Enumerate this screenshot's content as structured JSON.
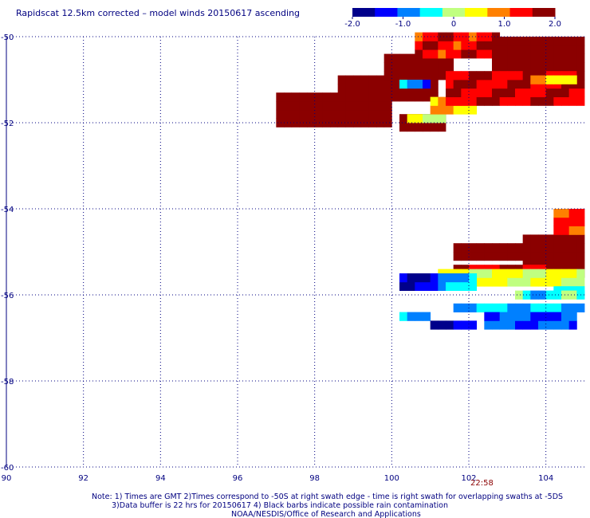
{
  "chart_data": {
    "type": "heatmap",
    "title": "Rapidscat 12.5km corrected – model winds 20150617 ascending",
    "xlim": [
      90,
      105
    ],
    "ylim": [
      -60,
      -50
    ],
    "x_ticks": [
      90,
      92,
      94,
      96,
      98,
      100,
      102,
      104
    ],
    "x_tick_labels": [
      "90",
      "92",
      "94",
      "96",
      "98",
      "100",
      "102",
      "104"
    ],
    "y_ticks": [
      -50,
      -52,
      -54,
      -56,
      -58,
      -60
    ],
    "y_tick_labels": [
      "-50",
      "-52",
      "-54",
      "-56",
      "-58",
      "-60"
    ],
    "grid": true,
    "colorbar": {
      "min": -2.0,
      "max": 2.0,
      "tick_values": [
        -2.0,
        -1.0,
        0,
        1.0,
        2.0
      ],
      "tick_labels": [
        "-2.0",
        "-1.0",
        "0",
        "1.0",
        "2.0"
      ],
      "colors": [
        "#00008b",
        "#0000ff",
        "#0080ff",
        "#00ffff",
        "#c0ff80",
        "#ffff00",
        "#ff8000",
        "#ff0000",
        "#8b0000"
      ]
    },
    "swath_time": "22:58",
    "notes": [
      "Note: 1) Times are GMT 2)Times correspond to -50S at right swath edge - time is right swath for overlapping swaths at -5DS",
      "3)Data buffer is 22 hrs for 20150617 4) Black barbs indicate possible rain contamination",
      "NOAA/NESDIS/Office of Research and Applications"
    ],
    "cell_size_deg": [
      0.2,
      0.2
    ],
    "regions": [
      {
        "x0": 97.0,
        "x1": 100.0,
        "y0": -52.1,
        "y1": -51.3,
        "value": 2.0
      },
      {
        "x0": 98.6,
        "x1": 101.2,
        "y0": -51.5,
        "y1": -50.9,
        "value": 2.0
      },
      {
        "x0": 99.8,
        "x1": 101.5,
        "y0": -51.0,
        "y1": -50.4,
        "value": 2.0
      },
      {
        "x0": 100.6,
        "x1": 102.8,
        "y0": -50.5,
        "y1": -50.0,
        "value": 1.4
      },
      {
        "x0": 102.6,
        "x1": 105.0,
        "y0": -50.8,
        "y1": -50.1,
        "value": 2.0
      },
      {
        "x0": 100.2,
        "x1": 101.4,
        "y0": -52.2,
        "y1": -51.8,
        "value": 2.0
      },
      {
        "x0": 100.4,
        "x1": 101.4,
        "y0": -52.0,
        "y1": -51.8,
        "value": 0.3
      },
      {
        "x0": 100.2,
        "x1": 101.0,
        "y0": -51.2,
        "y1": -51.0,
        "value": -0.9
      },
      {
        "x0": 101.0,
        "x1": 102.2,
        "y0": -51.8,
        "y1": -51.5,
        "value": 0.7
      },
      {
        "x0": 101.4,
        "x1": 105.0,
        "y0": -51.6,
        "y1": -50.9,
        "value": 1.5
      },
      {
        "x0": 103.6,
        "x1": 104.8,
        "y0": -51.1,
        "y1": -50.9,
        "value": 0.6
      },
      {
        "x0": 103.4,
        "x1": 105.0,
        "y0": -55.6,
        "y1": -54.6,
        "value": 2.0
      },
      {
        "x0": 104.2,
        "x1": 105.0,
        "y0": -54.6,
        "y1": -54.1,
        "value": 1.2
      },
      {
        "x0": 101.6,
        "x1": 103.4,
        "y0": -55.2,
        "y1": -54.9,
        "value": 2.0
      },
      {
        "x0": 101.6,
        "x1": 104.0,
        "y0": -55.5,
        "y1": -55.3,
        "value": 1.5
      },
      {
        "x0": 101.2,
        "x1": 105.0,
        "y0": -55.8,
        "y1": -55.4,
        "value": 0.3
      },
      {
        "x0": 100.2,
        "x1": 101.2,
        "y0": -55.9,
        "y1": -55.5,
        "value": -1.5
      },
      {
        "x0": 101.2,
        "x1": 102.2,
        "y0": -55.9,
        "y1": -55.5,
        "value": -0.6
      },
      {
        "x0": 104.2,
        "x1": 105.0,
        "y0": -56.0,
        "y1": -55.8,
        "value": -0.6
      },
      {
        "x0": 103.2,
        "x1": 105.0,
        "y0": -56.1,
        "y1": -55.9,
        "value": -0.4
      },
      {
        "x0": 101.6,
        "x1": 105.0,
        "y0": -56.4,
        "y1": -56.2,
        "value": -0.6
      },
      {
        "x0": 100.2,
        "x1": 100.9,
        "y0": -56.6,
        "y1": -56.4,
        "value": -0.7
      },
      {
        "x0": 101.0,
        "x1": 102.2,
        "y0": -56.8,
        "y1": -56.6,
        "value": -1.5
      },
      {
        "x0": 102.4,
        "x1": 104.8,
        "y0": -56.8,
        "y1": -56.5,
        "value": -1.1
      }
    ]
  }
}
